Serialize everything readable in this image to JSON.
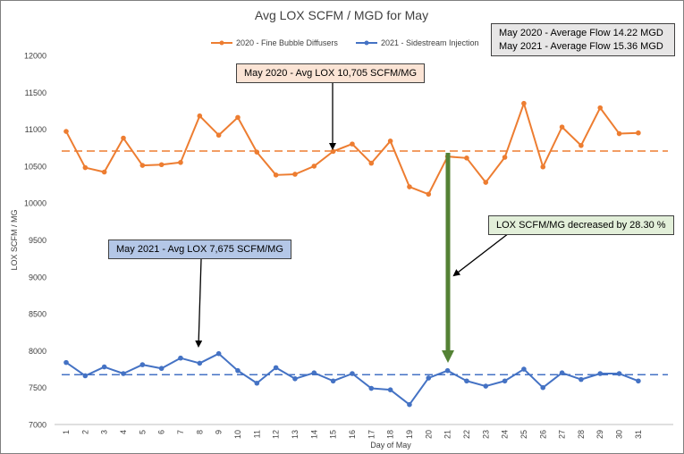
{
  "chart_data": {
    "type": "line",
    "title": "Avg LOX SCFM / MGD for May",
    "xlabel": "Day of May",
    "ylabel": "LOX SCFM / MG",
    "ylim": [
      7000,
      12000
    ],
    "yticks": [
      7000,
      7500,
      8000,
      8500,
      9000,
      9500,
      10000,
      10500,
      11000,
      11500,
      12000
    ],
    "x": [
      1,
      2,
      3,
      4,
      5,
      6,
      7,
      8,
      9,
      10,
      11,
      12,
      13,
      14,
      15,
      16,
      17,
      18,
      19,
      20,
      21,
      22,
      23,
      24,
      25,
      26,
      27,
      28,
      29,
      30,
      31
    ],
    "series": [
      {
        "name": "2020 - Fine Bubble Diffusers",
        "color": "#ed7d31",
        "values": [
          10970,
          10480,
          10420,
          10880,
          10510,
          10520,
          10550,
          11180,
          10920,
          11160,
          10690,
          10380,
          10390,
          10500,
          10700,
          10800,
          10540,
          10840,
          10220,
          10120,
          10630,
          10610,
          10280,
          10620,
          11350,
          10490,
          11030,
          10780,
          11290,
          10940,
          10950
        ]
      },
      {
        "name": "2021 - Sidestream Injection",
        "color": "#4472c4",
        "values": [
          7840,
          7660,
          7780,
          7690,
          7810,
          7760,
          7900,
          7830,
          7960,
          7730,
          7560,
          7770,
          7620,
          7700,
          7590,
          7690,
          7490,
          7470,
          7270,
          7630,
          7730,
          7590,
          7520,
          7590,
          7750,
          7500,
          7700,
          7610,
          7690,
          7690,
          7590
        ]
      }
    ],
    "reference_lines": [
      {
        "series": "2020 - Fine Bubble Diffusers",
        "value": 10705,
        "style": "dashed",
        "color": "#ed7d31"
      },
      {
        "series": "2021 - Sidestream Injection",
        "value": 7675,
        "style": "dashed",
        "color": "#4472c4"
      }
    ],
    "legend": "top-center",
    "grid": false
  },
  "annotations": {
    "avg_2020": "May 2020 - Avg LOX 10,705 SCFM/MG",
    "avg_2021": "May 2021 - Avg LOX 7,675 SCFM/MG",
    "decrease": "LOX SCFM/MG decreased by 28.30 %",
    "arrow_color": "#548235"
  },
  "flow_box": {
    "line1": "May 2020 - Average Flow 14.22 MGD",
    "line2": "May 2021 - Average Flow 15.36 MGD"
  }
}
